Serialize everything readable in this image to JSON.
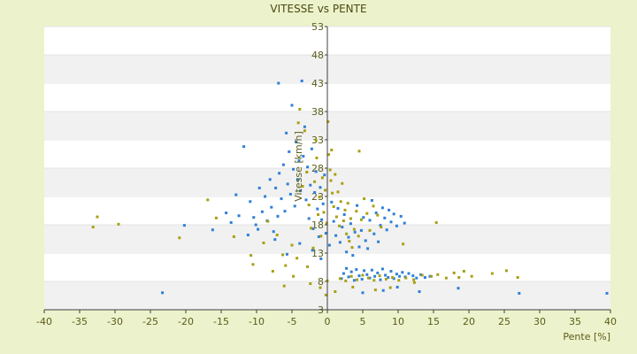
{
  "chart_data": {
    "type": "scatter",
    "title": "VITESSE vs PENTE",
    "xlabel": "Pente [%]",
    "ylabel": "Vitesse [km/h]",
    "xlim": [
      -40,
      40
    ],
    "ylim": [
      3,
      53
    ],
    "xticks": [
      -40,
      -35,
      -30,
      -25,
      -20,
      -15,
      -10,
      -5,
      0,
      5,
      10,
      15,
      20,
      25,
      30,
      35,
      40
    ],
    "yticks": [
      3,
      8,
      13,
      18,
      23,
      28,
      33,
      38,
      43,
      48,
      53
    ],
    "grid": "alternating horizontal bands",
    "legend": "none",
    "colors": {
      "series_a": "#2f7fd8",
      "series_b": "#a8a012",
      "band": "#f1f1f1",
      "plot_bg": "#ffffff",
      "axis": "#404040"
    },
    "series": [
      {
        "color": "#2f7fd8",
        "points": [
          [
            -23.3,
            6.0
          ],
          [
            -20.2,
            17.9
          ],
          [
            -16.2,
            17.1
          ],
          [
            -14.3,
            20.1
          ],
          [
            -13.6,
            18.4
          ],
          [
            -12.9,
            23.3
          ],
          [
            -12.5,
            19.6
          ],
          [
            -11.8,
            31.8
          ],
          [
            -11.2,
            16.2
          ],
          [
            -10.9,
            22.1
          ],
          [
            -10.4,
            19.3
          ],
          [
            -10.1,
            18.0
          ],
          [
            -9.6,
            24.5
          ],
          [
            -9.2,
            20.3
          ],
          [
            -8.8,
            23.0
          ],
          [
            -8.5,
            18.7
          ],
          [
            -8.1,
            26.0
          ],
          [
            -7.9,
            21.1
          ],
          [
            -7.6,
            16.8
          ],
          [
            -7.3,
            24.5
          ],
          [
            -7.0,
            19.5
          ],
          [
            -6.8,
            27.1
          ],
          [
            -6.5,
            22.6
          ],
          [
            -6.2,
            28.6
          ],
          [
            -6.0,
            20.4
          ],
          [
            -5.8,
            34.2
          ],
          [
            -5.6,
            25.2
          ],
          [
            -5.4,
            30.9
          ],
          [
            -5.2,
            23.4
          ],
          [
            -5.0,
            39.1
          ],
          [
            -4.8,
            27.8
          ],
          [
            -4.6,
            21.3
          ],
          [
            -4.4,
            32.6
          ],
          [
            -4.2,
            26.0
          ],
          [
            -4.0,
            29.3
          ],
          [
            -3.8,
            24.0
          ],
          [
            -3.6,
            43.4
          ],
          [
            -3.4,
            30.1
          ],
          [
            -3.2,
            35.3
          ],
          [
            -3.0,
            22.4
          ],
          [
            -2.8,
            28.2
          ],
          [
            -2.6,
            19.1
          ],
          [
            -2.4,
            25.0
          ],
          [
            -2.2,
            31.4
          ],
          [
            -2.0,
            17.3
          ],
          [
            -1.8,
            23.7
          ],
          [
            -1.6,
            27.4
          ],
          [
            -1.4,
            20.8
          ],
          [
            -1.2,
            15.9
          ],
          [
            -1.0,
            24.6
          ],
          [
            -0.8,
            18.9
          ],
          [
            -0.6,
            21.7
          ],
          [
            -0.4,
            26.8
          ],
          [
            -0.2,
            16.5
          ],
          [
            -6.9,
            43.0
          ],
          [
            -9.8,
            17.2
          ],
          [
            -7.4,
            15.4
          ],
          [
            -5.7,
            12.8
          ],
          [
            -3.9,
            14.7
          ],
          [
            -2.1,
            13.5
          ],
          [
            -0.9,
            12.0
          ],
          [
            0.3,
            14.4
          ],
          [
            0.6,
            22.0
          ],
          [
            0.9,
            18.6
          ],
          [
            1.2,
            16.1
          ],
          [
            1.5,
            20.9
          ],
          [
            1.8,
            14.9
          ],
          [
            2.1,
            17.6
          ],
          [
            2.4,
            19.8
          ],
          [
            2.7,
            13.2
          ],
          [
            3.0,
            15.8
          ],
          [
            3.3,
            18.2
          ],
          [
            3.6,
            12.6
          ],
          [
            3.9,
            16.7
          ],
          [
            4.2,
            21.4
          ],
          [
            4.5,
            14.1
          ],
          [
            4.8,
            17.0
          ],
          [
            5.1,
            19.3
          ],
          [
            5.4,
            15.2
          ],
          [
            5.7,
            13.8
          ],
          [
            6.0,
            18.8
          ],
          [
            6.3,
            22.3
          ],
          [
            6.6,
            16.4
          ],
          [
            6.9,
            20.1
          ],
          [
            7.2,
            15.0
          ],
          [
            7.5,
            17.9
          ],
          [
            7.8,
            21.0
          ],
          [
            8.1,
            19.2
          ],
          [
            8.4,
            17.1
          ],
          [
            8.7,
            20.6
          ],
          [
            9.0,
            18.5
          ],
          [
            9.4,
            19.9
          ],
          [
            9.8,
            17.8
          ],
          [
            10.4,
            19.5
          ],
          [
            10.9,
            18.3
          ],
          [
            2.0,
            8.5
          ],
          [
            2.3,
            9.4
          ],
          [
            2.7,
            10.3
          ],
          [
            3.0,
            8.8
          ],
          [
            3.4,
            9.7
          ],
          [
            3.8,
            8.2
          ],
          [
            4.1,
            10.1
          ],
          [
            4.5,
            9.0
          ],
          [
            4.9,
            8.4
          ],
          [
            5.2,
            9.9
          ],
          [
            5.6,
            9.2
          ],
          [
            6.0,
            8.6
          ],
          [
            6.3,
            10.0
          ],
          [
            6.7,
            8.9
          ],
          [
            7.1,
            9.5
          ],
          [
            7.5,
            8.3
          ],
          [
            7.8,
            10.2
          ],
          [
            8.2,
            9.1
          ],
          [
            8.6,
            8.7
          ],
          [
            9.0,
            9.8
          ],
          [
            9.4,
            8.5
          ],
          [
            9.8,
            9.3
          ],
          [
            10.2,
            8.9
          ],
          [
            10.6,
            9.6
          ],
          [
            11.0,
            8.8
          ],
          [
            11.5,
            9.4
          ],
          [
            12.1,
            9.0
          ],
          [
            12.6,
            8.6
          ],
          [
            13.2,
            9.2
          ],
          [
            13.8,
            8.7
          ],
          [
            14.5,
            8.9
          ],
          [
            5.0,
            6.0
          ],
          [
            9.9,
            7.0
          ],
          [
            18.5,
            6.8
          ],
          [
            27.1,
            5.9
          ],
          [
            39.5,
            5.9
          ],
          [
            13.0,
            6.2
          ],
          [
            7.9,
            6.4
          ]
        ]
      },
      {
        "color": "#a8a012",
        "points": [
          [
            -33.1,
            17.6
          ],
          [
            -32.5,
            19.4
          ],
          [
            -29.5,
            18.1
          ],
          [
            -20.9,
            15.7
          ],
          [
            -16.9,
            22.4
          ],
          [
            -15.7,
            19.2
          ],
          [
            -13.2,
            15.9
          ],
          [
            -10.5,
            11.0
          ],
          [
            -9.0,
            14.8
          ],
          [
            -8.4,
            18.6
          ],
          [
            -7.1,
            16.2
          ],
          [
            -6.3,
            12.7
          ],
          [
            -5.9,
            10.8
          ],
          [
            -5.0,
            14.4
          ],
          [
            -4.3,
            12.1
          ],
          [
            -3.5,
            24.8
          ],
          [
            -3.2,
            34.6
          ],
          [
            -2.9,
            27.3
          ],
          [
            -2.6,
            21.5
          ],
          [
            -2.3,
            17.4
          ],
          [
            -2.0,
            13.9
          ],
          [
            -1.8,
            25.6
          ],
          [
            -1.5,
            29.8
          ],
          [
            -1.3,
            19.8
          ],
          [
            -1.1,
            22.9
          ],
          [
            -0.9,
            16.0
          ],
          [
            -0.7,
            26.3
          ],
          [
            -0.5,
            20.2
          ],
          [
            -0.3,
            24.1
          ],
          [
            -0.1,
            18.3
          ],
          [
            -3.9,
            38.4
          ],
          [
            -1.6,
            32.9
          ],
          [
            -4.1,
            36.0
          ],
          [
            0.1,
            36.2
          ],
          [
            0.2,
            30.4
          ],
          [
            0.4,
            27.7
          ],
          [
            0.5,
            25.8
          ],
          [
            0.7,
            23.6
          ],
          [
            0.9,
            21.2
          ],
          [
            1.1,
            26.9
          ],
          [
            1.3,
            19.4
          ],
          [
            1.5,
            23.8
          ],
          [
            1.7,
            17.8
          ],
          [
            1.9,
            22.1
          ],
          [
            2.1,
            25.3
          ],
          [
            2.3,
            18.7
          ],
          [
            2.5,
            20.6
          ],
          [
            2.7,
            16.4
          ],
          [
            2.9,
            21.8
          ],
          [
            3.1,
            15.1
          ],
          [
            3.3,
            19.1
          ],
          [
            3.5,
            14.0
          ],
          [
            3.8,
            17.2
          ],
          [
            4.1,
            20.4
          ],
          [
            4.4,
            16.0
          ],
          [
            4.8,
            18.9
          ],
          [
            5.2,
            22.6
          ],
          [
            5.6,
            20.0
          ],
          [
            6.0,
            17.0
          ],
          [
            6.5,
            21.3
          ],
          [
            7.1,
            19.7
          ],
          [
            7.6,
            17.6
          ],
          [
            0.6,
            31.2
          ],
          [
            4.5,
            31.0
          ],
          [
            1.8,
            8.5
          ],
          [
            2.6,
            8.1
          ],
          [
            3.4,
            8.9
          ],
          [
            4.2,
            8.3
          ],
          [
            5.0,
            9.1
          ],
          [
            5.8,
            8.6
          ],
          [
            6.6,
            8.2
          ],
          [
            7.4,
            9.0
          ],
          [
            8.3,
            8.4
          ],
          [
            9.2,
            8.7
          ],
          [
            10.1,
            8.2
          ],
          [
            11.1,
            8.6
          ],
          [
            12.2,
            8.3
          ],
          [
            13.4,
            9.1
          ],
          [
            14.7,
            8.9
          ],
          [
            15.6,
            9.2
          ],
          [
            16.8,
            8.6
          ],
          [
            17.9,
            9.5
          ],
          [
            18.6,
            8.7
          ],
          [
            19.3,
            9.8
          ],
          [
            20.4,
            8.9
          ],
          [
            23.3,
            9.4
          ],
          [
            25.3,
            9.9
          ],
          [
            26.9,
            8.7
          ],
          [
            15.4,
            18.4
          ],
          [
            10.7,
            14.6
          ],
          [
            -6.1,
            7.2
          ],
          [
            -4.8,
            8.9
          ],
          [
            -2.8,
            10.6
          ],
          [
            -1.0,
            6.9
          ],
          [
            -0.2,
            5.6
          ],
          [
            0.0,
            8.1
          ],
          [
            1.1,
            6.2
          ],
          [
            3.6,
            7.0
          ],
          [
            6.8,
            6.5
          ],
          [
            8.9,
            6.9
          ],
          [
            12.3,
            7.8
          ],
          [
            -10.8,
            12.6
          ],
          [
            -7.7,
            9.8
          ],
          [
            -2.4,
            7.6
          ]
        ]
      }
    ]
  }
}
